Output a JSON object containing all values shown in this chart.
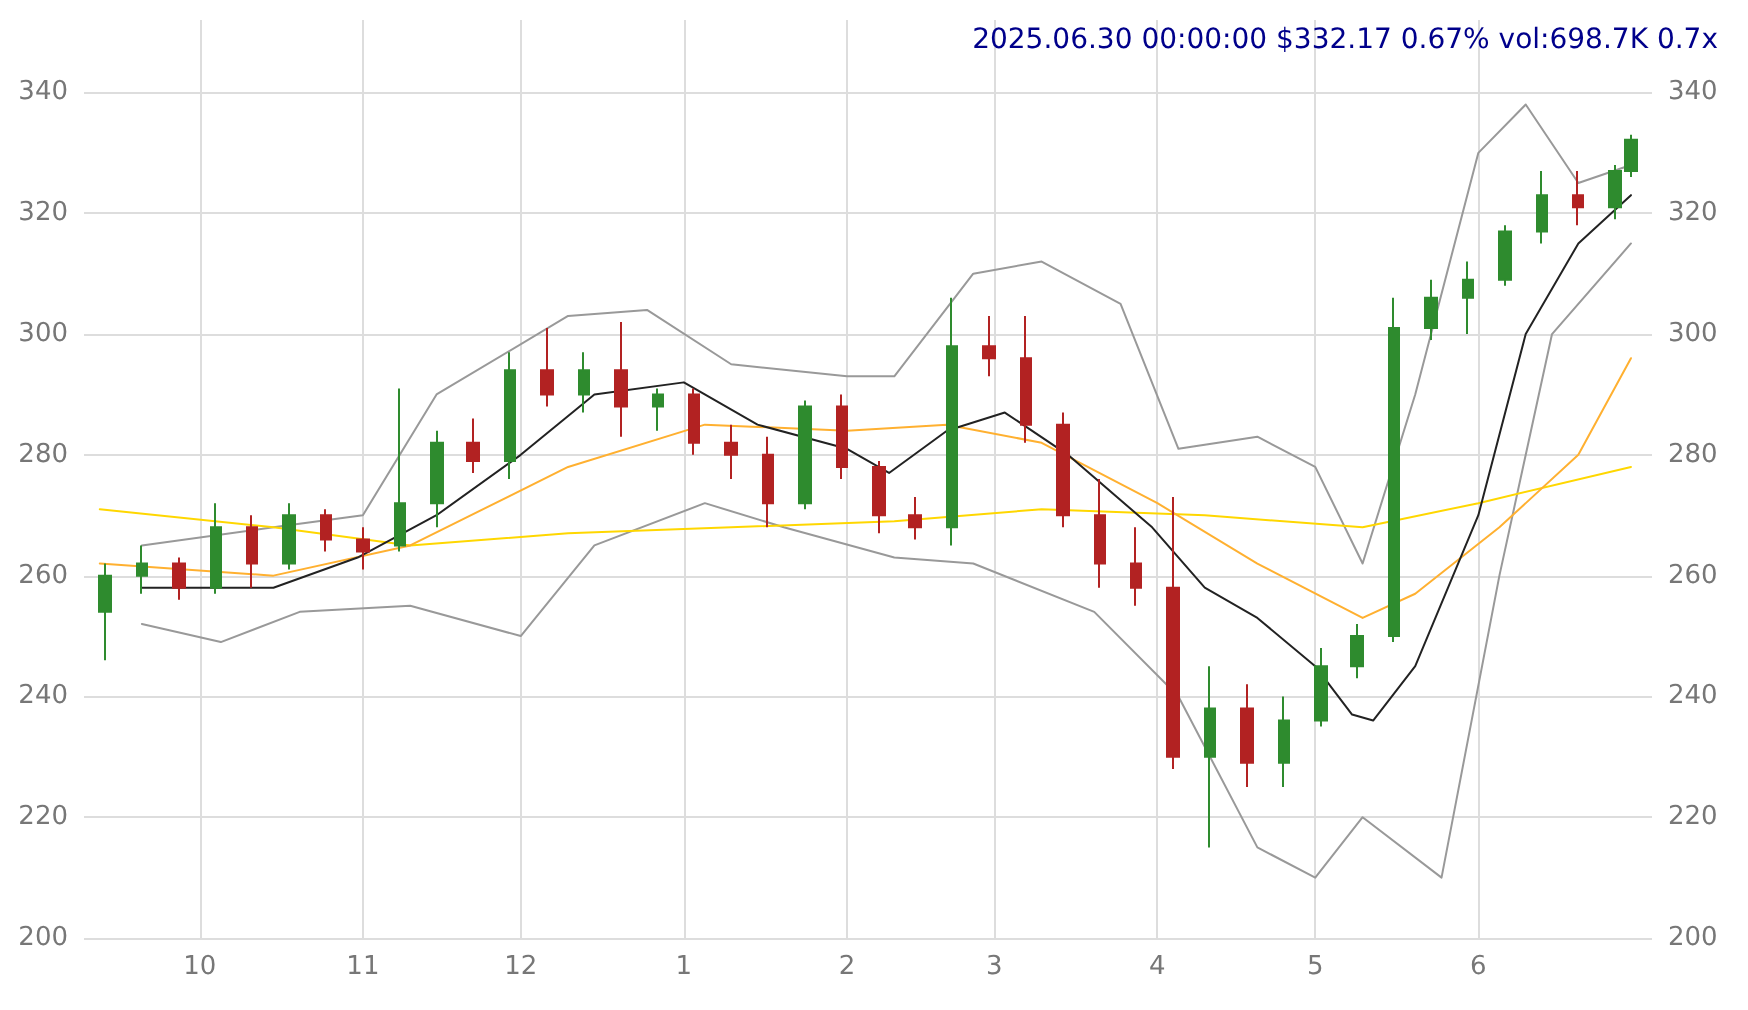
{
  "chart_data": {
    "type": "candlestick",
    "title": "2025.06.30 00:00:00 $332.17 0.67% vol:698.7K 0.7x",
    "x": [
      "2024-09-13",
      "2024-09-20",
      "2024-09-27",
      "2024-10-04",
      "2024-10-11",
      "2024-10-18",
      "2024-10-25",
      "2024-11-01",
      "2024-11-08",
      "2024-11-15",
      "2024-11-22",
      "2024-11-29",
      "2024-12-06",
      "2024-12-13",
      "2024-12-20",
      "2024-12-27",
      "2025-01-03",
      "2025-01-10",
      "2025-01-17",
      "2025-01-24",
      "2025-01-31",
      "2025-02-07",
      "2025-02-14",
      "2025-02-21",
      "2025-02-28",
      "2025-03-07",
      "2025-03-14",
      "2025-03-21",
      "2025-03-28",
      "2025-04-04",
      "2025-04-11",
      "2025-04-18",
      "2025-04-25",
      "2025-05-02",
      "2025-05-09",
      "2025-05-16",
      "2025-05-23",
      "2025-05-30",
      "2025-06-06",
      "2025-06-13",
      "2025-06-20",
      "2025-06-27",
      "2025-06-30"
    ],
    "ohlc": [
      [
        254,
        262,
        246,
        260
      ],
      [
        260,
        265,
        257,
        262
      ],
      [
        262,
        263,
        256,
        258
      ],
      [
        258,
        272,
        257,
        268
      ],
      [
        268,
        270,
        258,
        262
      ],
      [
        262,
        272,
        261,
        270
      ],
      [
        270,
        271,
        264,
        266
      ],
      [
        266,
        268,
        261,
        264
      ],
      [
        265,
        291,
        264,
        272
      ],
      [
        272,
        284,
        268,
        282
      ],
      [
        282,
        286,
        277,
        279
      ],
      [
        279,
        297,
        276,
        294
      ],
      [
        294,
        301,
        288,
        290
      ],
      [
        290,
        297,
        287,
        294
      ],
      [
        294,
        302,
        283,
        288
      ],
      [
        288,
        291,
        284,
        290
      ],
      [
        290,
        291,
        280,
        282
      ],
      [
        282,
        285,
        276,
        280
      ],
      [
        280,
        283,
        268,
        272
      ],
      [
        272,
        289,
        271,
        288
      ],
      [
        288,
        290,
        276,
        278
      ],
      [
        278,
        279,
        267,
        270
      ],
      [
        270,
        273,
        266,
        268
      ],
      [
        268,
        306,
        265,
        298
      ],
      [
        298,
        303,
        293,
        296
      ],
      [
        296,
        303,
        282,
        285
      ],
      [
        285,
        287,
        268,
        270
      ],
      [
        270,
        276,
        258,
        262
      ],
      [
        262,
        268,
        255,
        258
      ],
      [
        258,
        273,
        228,
        230
      ],
      [
        230,
        245,
        215,
        238
      ],
      [
        238,
        242,
        225,
        229
      ],
      [
        229,
        240,
        225,
        236
      ],
      [
        236,
        248,
        235,
        245
      ],
      [
        245,
        252,
        243,
        250
      ],
      [
        250,
        306,
        249,
        301
      ],
      [
        301,
        309,
        299,
        306
      ],
      [
        306,
        312,
        300,
        309
      ],
      [
        309,
        318,
        308,
        317
      ],
      [
        317,
        327,
        315,
        323
      ],
      [
        323,
        327,
        318,
        321
      ],
      [
        321,
        328,
        319,
        327
      ],
      [
        327,
        333,
        326,
        332.17
      ]
    ],
    "series": [
      {
        "type": "line",
        "color": "#999999",
        "x": [
          "2024-09-20",
          "2024-10-15",
          "2024-11-01",
          "2024-11-15",
          "2024-12-10",
          "2024-12-25",
          "2025-01-10",
          "2025-02-01",
          "2025-02-10",
          "2025-02-25",
          "2025-03-10",
          "2025-03-25",
          "2025-04-05",
          "2025-04-20",
          "2025-05-01",
          "2025-05-10",
          "2025-05-20",
          "2025-06-01",
          "2025-06-10",
          "2025-06-20",
          "2025-06-30"
        ],
        "values": [
          265,
          268,
          270,
          290,
          303,
          304,
          295,
          293,
          293,
          310,
          312,
          305,
          281,
          283,
          278,
          262,
          290,
          330,
          338,
          325,
          328
        ]
      },
      {
        "type": "line",
        "color": "#999999",
        "x": [
          "2024-09-20",
          "2024-10-05",
          "2024-10-20",
          "2024-11-10",
          "2024-12-01",
          "2024-12-15",
          "2025-01-05",
          "2025-01-20",
          "2025-02-10",
          "2025-02-25",
          "2025-03-20",
          "2025-04-05",
          "2025-04-20",
          "2025-05-01",
          "2025-05-10",
          "2025-05-25",
          "2025-06-05",
          "2025-06-15",
          "2025-06-30"
        ],
        "values": [
          252,
          249,
          254,
          255,
          250,
          265,
          272,
          268,
          263,
          262,
          254,
          240,
          215,
          210,
          220,
          210,
          260,
          300,
          315
        ]
      },
      {
        "type": "line",
        "color": "#ffd700",
        "x": [
          "2024-09-12",
          "2024-10-15",
          "2024-11-10",
          "2024-12-10",
          "2025-01-10",
          "2025-02-10",
          "2025-03-10",
          "2025-04-10",
          "2025-05-10",
          "2025-06-01",
          "2025-06-30"
        ],
        "values": [
          271,
          268,
          265,
          267,
          268,
          269,
          271,
          270,
          268,
          272,
          278
        ]
      },
      {
        "type": "line",
        "color": "#ffb030",
        "x": [
          "2024-09-12",
          "2024-10-15",
          "2024-11-10",
          "2024-12-10",
          "2025-01-05",
          "2025-02-01",
          "2025-02-20",
          "2025-03-10",
          "2025-04-01",
          "2025-04-20",
          "2025-05-10",
          "2025-05-20",
          "2025-06-05",
          "2025-06-20",
          "2025-06-30"
        ],
        "values": [
          262,
          260,
          265,
          278,
          285,
          284,
          285,
          282,
          272,
          262,
          253,
          257,
          268,
          280,
          296
        ]
      },
      {
        "type": "line",
        "color": "#222222",
        "x": [
          "2024-09-20",
          "2024-10-15",
          "2024-10-31",
          "2024-11-15",
          "2024-12-01",
          "2024-12-15",
          "2025-01-01",
          "2025-01-15",
          "2025-02-01",
          "2025-02-09",
          "2025-02-20",
          "2025-03-03",
          "2025-03-15",
          "2025-03-31",
          "2025-04-10",
          "2025-04-20",
          "2025-05-01",
          "2025-05-08",
          "2025-05-12",
          "2025-05-20",
          "2025-06-01",
          "2025-06-10",
          "2025-06-20",
          "2025-06-30"
        ],
        "values": [
          258,
          258,
          263,
          270,
          280,
          290,
          292,
          285,
          281,
          277,
          284,
          287,
          280,
          268,
          258,
          253,
          245,
          237,
          236,
          245,
          270,
          300,
          315,
          323
        ]
      }
    ],
    "xlim": [
      "2024-09-09",
      "2025-07-04"
    ],
    "xticks": [
      {
        "value": "2024-10-01",
        "label": "10"
      },
      {
        "value": "2024-11-01",
        "label": "11"
      },
      {
        "value": "2024-12-01",
        "label": "12"
      },
      {
        "value": "2025-01-01",
        "label": "1"
      },
      {
        "value": "2025-02-01",
        "label": "2"
      },
      {
        "value": "2025-03-01",
        "label": "3"
      },
      {
        "value": "2025-04-01",
        "label": "4"
      },
      {
        "value": "2025-05-01",
        "label": "5"
      },
      {
        "value": "2025-06-01",
        "label": "6"
      }
    ],
    "ylim": [
      200,
      352
    ],
    "yticks": [
      200,
      220,
      240,
      260,
      280,
      300,
      320,
      340
    ],
    "y2lim": [
      200,
      352
    ],
    "y2ticks": [
      200,
      220,
      240,
      260,
      280,
      300,
      320,
      340
    ],
    "grid": true,
    "marker": "none",
    "line_style": "solid"
  }
}
